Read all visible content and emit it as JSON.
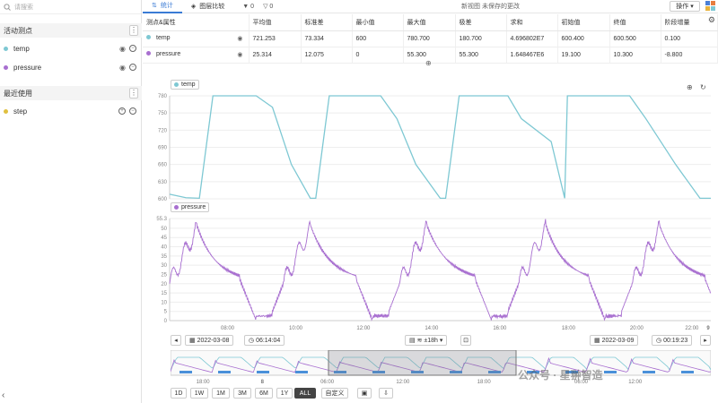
{
  "sidebar": {
    "search_placeholder": "请搜索",
    "active_section": "活动测点",
    "active_items": [
      {
        "name": "temp",
        "color": "#7ec8d3"
      },
      {
        "name": "pressure",
        "color": "#a86fd0"
      }
    ],
    "recent_section": "最近使用",
    "recent_items": [
      {
        "name": "step",
        "color": "#e0c040"
      }
    ]
  },
  "topbar": {
    "tab_stats": "统计",
    "tab_compare": "图层比较",
    "filter1_count": "0",
    "filter2_count": "0",
    "status": "新视图  未保存的更改",
    "ops_label": "操作"
  },
  "table": {
    "headers": [
      "测点&属性",
      "平均值",
      "标准差",
      "最小值",
      "最大值",
      "极差",
      "求和",
      "初始值",
      "终值",
      "阶段增量"
    ],
    "rows": [
      {
        "name": "temp",
        "color": "#7ec8d3",
        "cells": [
          "721.253",
          "73.334",
          "600",
          "780.700",
          "180.700",
          "4.696802E7",
          "600.400",
          "600.500",
          "0.100"
        ]
      },
      {
        "name": "pressure",
        "color": "#a86fd0",
        "cells": [
          "25.314",
          "12.075",
          "0",
          "55.300",
          "55.300",
          "1.648467E6",
          "19.100",
          "10.300",
          "-8.800"
        ]
      }
    ]
  },
  "chart_data": [
    {
      "type": "line",
      "series_name": "temp",
      "color": "#7ec8d3",
      "yticks": [
        "780",
        "750",
        "720",
        "690",
        "660",
        "630",
        "600"
      ],
      "ylim": [
        600,
        780
      ],
      "x": [
        0,
        0.03,
        0.055,
        0.08,
        0.16,
        0.19,
        0.225,
        0.26,
        0.27,
        0.295,
        0.39,
        0.42,
        0.455,
        0.5,
        0.51,
        0.535,
        0.625,
        0.65,
        0.705,
        0.73,
        0.735,
        0.77,
        0.85,
        0.88,
        0.935,
        0.98,
        1.0
      ],
      "values": [
        608,
        602,
        601,
        780,
        780,
        760,
        660,
        601,
        601,
        780,
        780,
        740,
        660,
        601,
        601,
        780,
        780,
        740,
        700,
        601,
        780,
        780,
        780,
        740,
        660,
        601,
        601
      ]
    },
    {
      "type": "line",
      "series_name": "pressure",
      "color": "#a86fd0",
      "yticks": [
        "55.3",
        "50",
        "45",
        "40",
        "35",
        "30",
        "25",
        "20",
        "15",
        "10",
        "5",
        "0"
      ],
      "ylim": [
        0,
        55.3
      ],
      "xticks": [
        "08:00",
        "10:00",
        "12:00",
        "14:00",
        "16:00",
        "18:00",
        "20:00",
        "22:00",
        "9"
      ]
    }
  ],
  "navigator": {
    "start_date": "2022-03-08",
    "start_time": "06:14:04",
    "zoom": "±18h",
    "end_date": "2022-03-09",
    "end_time": "00:19:23",
    "ticks": [
      "18:00",
      "8",
      "06:00",
      "12:00",
      "18:00",
      "06:00",
      "12:00"
    ]
  },
  "ranges": [
    "1D",
    "1W",
    "1M",
    "3M",
    "6M",
    "1Y",
    "ALL"
  ],
  "active_range": "ALL",
  "custom_label": "自定义",
  "watermark": "公众号 · 星翀智造"
}
